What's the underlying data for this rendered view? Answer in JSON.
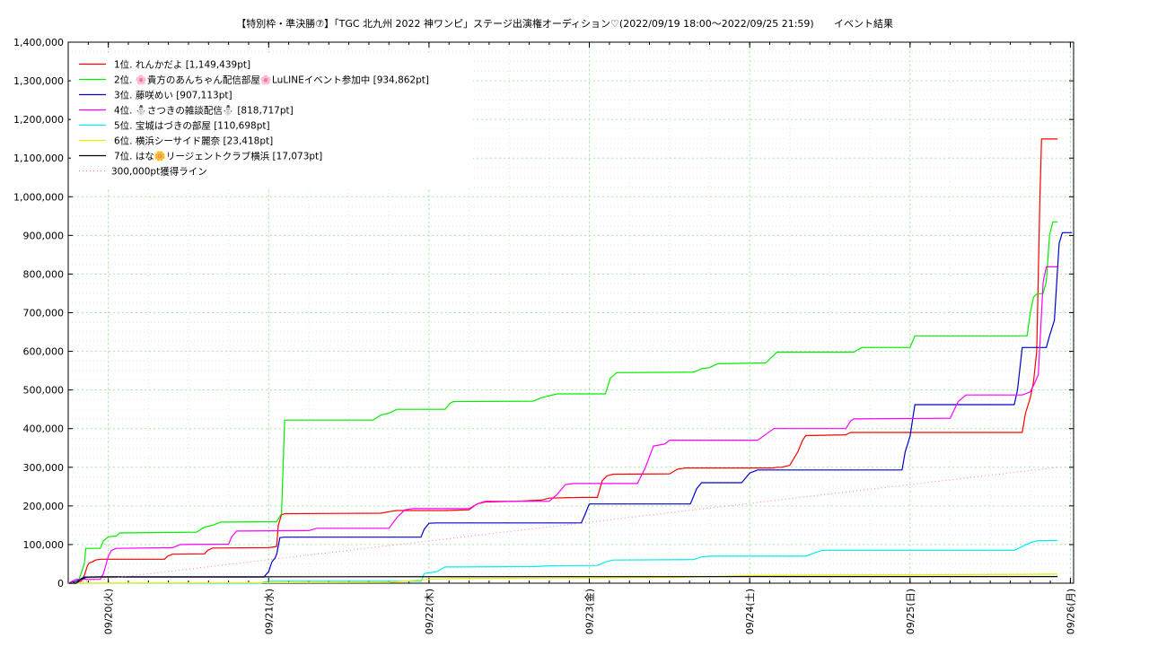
{
  "chart_data": {
    "type": "line",
    "title": "【特別枠・準決勝⑦】「TGC 北九州 2022 神ワンピ」ステージ出演権オーディション♡(2022/09/19 18:00〜2022/09/25 21:59)",
    "subtitle": "イベント結果",
    "xlabel": "",
    "ylabel": "",
    "x_unit": "days since 2022/09/19 18:00",
    "xlim": [
      0,
      6.27
    ],
    "ylim": [
      0,
      1400000
    ],
    "grid": true,
    "legend_position": "top-left",
    "x_ticks": [
      {
        "x": 0.25,
        "label": "09/20(火)"
      },
      {
        "x": 1.25,
        "label": "09/21(水)"
      },
      {
        "x": 2.25,
        "label": "09/22(木)"
      },
      {
        "x": 3.25,
        "label": "09/23(金)"
      },
      {
        "x": 4.25,
        "label": "09/24(土)"
      },
      {
        "x": 5.25,
        "label": "09/25(日)"
      },
      {
        "x": 6.25,
        "label": "09/26(月)"
      }
    ],
    "y_ticks": [
      {
        "v": 0,
        "label": "0"
      },
      {
        "v": 100000,
        "label": "100,000"
      },
      {
        "v": 200000,
        "label": "200,000"
      },
      {
        "v": 300000,
        "label": "300,000"
      },
      {
        "v": 400000,
        "label": "400,000"
      },
      {
        "v": 500000,
        "label": "500,000"
      },
      {
        "v": 600000,
        "label": "600,000"
      },
      {
        "v": 700000,
        "label": "700,000"
      },
      {
        "v": 800000,
        "label": "800,000"
      },
      {
        "v": 900000,
        "label": "900,000"
      },
      {
        "v": 1000000,
        "label": "1,000,000"
      },
      {
        "v": 1100000,
        "label": "1,100,000"
      },
      {
        "v": 1200000,
        "label": "1,200,000"
      },
      {
        "v": 1300000,
        "label": "1,300,000"
      },
      {
        "v": 1400000,
        "label": "1,400,000"
      }
    ],
    "series": [
      {
        "name": "1位. れんかだよ [1,149,439pt]",
        "color": "#ff0000",
        "style": "solid",
        "points": [
          [
            0,
            0
          ],
          [
            0.05,
            0
          ],
          [
            0.08,
            5000
          ],
          [
            0.1,
            20000
          ],
          [
            0.12,
            45000
          ],
          [
            0.13,
            52000
          ],
          [
            0.15,
            55000
          ],
          [
            0.17,
            60000
          ],
          [
            0.2,
            62000
          ],
          [
            0.45,
            62000
          ],
          [
            0.46,
            62000
          ],
          [
            0.6,
            62000
          ],
          [
            0.62,
            70000
          ],
          [
            0.65,
            75000
          ],
          [
            0.85,
            76000
          ],
          [
            0.87,
            85000
          ],
          [
            0.9,
            91000
          ],
          [
            1.25,
            92000
          ],
          [
            1.3,
            95000
          ],
          [
            1.31,
            150000
          ],
          [
            1.33,
            177000
          ],
          [
            1.35,
            180000
          ],
          [
            1.95,
            181000
          ],
          [
            2.0,
            185000
          ],
          [
            2.05,
            188000
          ],
          [
            2.35,
            188000
          ],
          [
            2.5,
            190000
          ],
          [
            2.55,
            205000
          ],
          [
            2.6,
            210000
          ],
          [
            2.8,
            212000
          ],
          [
            2.95,
            215000
          ],
          [
            3.0,
            220000
          ],
          [
            3.2,
            222000
          ],
          [
            3.3,
            222000
          ],
          [
            3.33,
            265000
          ],
          [
            3.36,
            278000
          ],
          [
            3.4,
            282000
          ],
          [
            3.75,
            283000
          ],
          [
            3.8,
            295000
          ],
          [
            3.85,
            298000
          ],
          [
            4.4,
            298000
          ],
          [
            4.42,
            300000
          ],
          [
            4.45,
            300000
          ],
          [
            4.5,
            305000
          ],
          [
            4.55,
            340000
          ],
          [
            4.58,
            370000
          ],
          [
            4.6,
            382000
          ],
          [
            4.85,
            384000
          ],
          [
            4.88,
            390000
          ],
          [
            5.9,
            390000
          ],
          [
            5.95,
            390000
          ],
          [
            5.97,
            440000
          ],
          [
            6.0,
            480000
          ],
          [
            6.02,
            520000
          ],
          [
            6.04,
            600000
          ],
          [
            6.06,
            1000000
          ],
          [
            6.07,
            1149439
          ],
          [
            6.17,
            1149439
          ]
        ]
      },
      {
        "name": "2位. 🌸貴方のあんちゃん配信部屋🌸LuLINEイベント参加中 [934,862pt]",
        "color": "#00ee00",
        "style": "solid",
        "points": [
          [
            0,
            0
          ],
          [
            0.06,
            2000
          ],
          [
            0.08,
            25000
          ],
          [
            0.1,
            50000
          ],
          [
            0.11,
            90000
          ],
          [
            0.2,
            90000
          ],
          [
            0.22,
            110000
          ],
          [
            0.25,
            120000
          ],
          [
            0.3,
            122000
          ],
          [
            0.32,
            130000
          ],
          [
            0.8,
            132000
          ],
          [
            0.85,
            145000
          ],
          [
            0.9,
            150000
          ],
          [
            0.95,
            158000
          ],
          [
            1.3,
            159000
          ],
          [
            1.33,
            180000
          ],
          [
            1.35,
            422000
          ],
          [
            1.9,
            422000
          ],
          [
            1.95,
            435000
          ],
          [
            2.0,
            440000
          ],
          [
            2.05,
            450000
          ],
          [
            2.35,
            450000
          ],
          [
            2.38,
            465000
          ],
          [
            2.4,
            470000
          ],
          [
            2.9,
            471000
          ],
          [
            2.95,
            480000
          ],
          [
            3.0,
            485000
          ],
          [
            3.05,
            490000
          ],
          [
            3.35,
            490000
          ],
          [
            3.38,
            530000
          ],
          [
            3.42,
            545000
          ],
          [
            3.9,
            546000
          ],
          [
            3.95,
            555000
          ],
          [
            4.0,
            558000
          ],
          [
            4.05,
            568000
          ],
          [
            4.35,
            570000
          ],
          [
            4.4,
            590000
          ],
          [
            4.42,
            598000
          ],
          [
            4.9,
            598000
          ],
          [
            4.95,
            610000
          ],
          [
            5.25,
            610000
          ],
          [
            5.28,
            640000
          ],
          [
            5.98,
            640000
          ],
          [
            6.0,
            700000
          ],
          [
            6.01,
            720000
          ],
          [
            6.02,
            740000
          ],
          [
            6.04,
            748000
          ],
          [
            6.08,
            750000
          ],
          [
            6.1,
            780000
          ],
          [
            6.12,
            900000
          ],
          [
            6.14,
            934862
          ],
          [
            6.17,
            934862
          ]
        ]
      },
      {
        "name": "3位. 藤咲めい [907,113pt]",
        "color": "#0000cc",
        "style": "solid",
        "points": [
          [
            0,
            0
          ],
          [
            0.05,
            5000
          ],
          [
            0.1,
            16000
          ],
          [
            1.22,
            16000
          ],
          [
            1.25,
            30000
          ],
          [
            1.27,
            55000
          ],
          [
            1.29,
            65000
          ],
          [
            1.3,
            75000
          ],
          [
            1.32,
            118000
          ],
          [
            1.35,
            119000
          ],
          [
            2.2,
            119000
          ],
          [
            2.22,
            140000
          ],
          [
            2.25,
            155000
          ],
          [
            2.3,
            156000
          ],
          [
            3.2,
            156000
          ],
          [
            3.22,
            175000
          ],
          [
            3.25,
            205000
          ],
          [
            3.3,
            205000
          ],
          [
            3.88,
            205000
          ],
          [
            3.92,
            245000
          ],
          [
            3.95,
            260000
          ],
          [
            4.2,
            260000
          ],
          [
            4.25,
            285000
          ],
          [
            4.3,
            293000
          ],
          [
            5.2,
            293000
          ],
          [
            5.22,
            340000
          ],
          [
            5.25,
            380000
          ],
          [
            5.28,
            462000
          ],
          [
            5.9,
            462000
          ],
          [
            5.92,
            500000
          ],
          [
            5.95,
            610000
          ],
          [
            6.1,
            610000
          ],
          [
            6.12,
            640000
          ],
          [
            6.15,
            680000
          ],
          [
            6.18,
            880000
          ],
          [
            6.2,
            907113
          ],
          [
            6.26,
            907113
          ]
        ]
      },
      {
        "name": "4位. ⛄さつきの雑談配信⛄ [818,717pt]",
        "color": "#ff00ff",
        "style": "solid",
        "points": [
          [
            0,
            0
          ],
          [
            0.05,
            10000
          ],
          [
            0.2,
            10000
          ],
          [
            0.22,
            25000
          ],
          [
            0.25,
            70000
          ],
          [
            0.27,
            85000
          ],
          [
            0.3,
            90000
          ],
          [
            0.65,
            92000
          ],
          [
            0.7,
            100000
          ],
          [
            1.0,
            101000
          ],
          [
            1.02,
            120000
          ],
          [
            1.05,
            135000
          ],
          [
            1.5,
            136000
          ],
          [
            1.55,
            142000
          ],
          [
            2.0,
            142000
          ],
          [
            2.05,
            170000
          ],
          [
            2.1,
            190000
          ],
          [
            2.15,
            193000
          ],
          [
            2.5,
            193000
          ],
          [
            2.55,
            205000
          ],
          [
            2.6,
            212000
          ],
          [
            3.0,
            212000
          ],
          [
            3.05,
            230000
          ],
          [
            3.1,
            255000
          ],
          [
            3.15,
            258000
          ],
          [
            3.55,
            258000
          ],
          [
            3.6,
            300000
          ],
          [
            3.65,
            355000
          ],
          [
            3.72,
            360000
          ],
          [
            3.75,
            370000
          ],
          [
            4.3,
            370000
          ],
          [
            4.35,
            385000
          ],
          [
            4.4,
            400000
          ],
          [
            4.85,
            400000
          ],
          [
            4.88,
            420000
          ],
          [
            4.9,
            425000
          ],
          [
            5.5,
            427000
          ],
          [
            5.55,
            470000
          ],
          [
            5.6,
            487000
          ],
          [
            5.95,
            487000
          ],
          [
            6.0,
            495000
          ],
          [
            6.03,
            520000
          ],
          [
            6.05,
            540000
          ],
          [
            6.08,
            780000
          ],
          [
            6.1,
            818717
          ],
          [
            6.17,
            818717
          ]
        ]
      },
      {
        "name": "5位. 宝城はづきの部屋 [110,698pt]",
        "color": "#00eeee",
        "style": "solid",
        "points": [
          [
            0,
            0
          ],
          [
            1.2,
            0
          ],
          [
            1.22,
            3000
          ],
          [
            1.25,
            5000
          ],
          [
            2.2,
            5000
          ],
          [
            2.22,
            25000
          ],
          [
            2.3,
            30000
          ],
          [
            2.35,
            42000
          ],
          [
            2.9,
            43000
          ],
          [
            3.0,
            45000
          ],
          [
            3.3,
            46000
          ],
          [
            3.35,
            55000
          ],
          [
            3.4,
            60000
          ],
          [
            3.9,
            61000
          ],
          [
            3.95,
            68000
          ],
          [
            4.0,
            70000
          ],
          [
            4.6,
            70000
          ],
          [
            4.65,
            78000
          ],
          [
            4.7,
            85000
          ],
          [
            5.9,
            85000
          ],
          [
            5.95,
            95000
          ],
          [
            6.0,
            105000
          ],
          [
            6.05,
            110000
          ],
          [
            6.17,
            110698
          ]
        ]
      },
      {
        "name": "6位. 横浜シーサイド麗奈 [23,418pt]",
        "color": "#eeee00",
        "style": "solid",
        "points": [
          [
            0,
            0
          ],
          [
            2.0,
            2000
          ],
          [
            2.25,
            10000
          ],
          [
            2.4,
            12000
          ],
          [
            3.2,
            14000
          ],
          [
            3.8,
            15000
          ],
          [
            4.3,
            20000
          ],
          [
            4.6,
            21000
          ],
          [
            5.5,
            22000
          ],
          [
            6.0,
            23000
          ],
          [
            6.17,
            23418
          ]
        ]
      },
      {
        "name": "7位. はな🌼リージェントクラブ横浜 [17,073pt]",
        "color": "#000000",
        "style": "solid",
        "points": [
          [
            0,
            0
          ],
          [
            0.05,
            0
          ],
          [
            0.08,
            10000
          ],
          [
            0.12,
            16000
          ],
          [
            0.2,
            16500
          ],
          [
            3.0,
            17000
          ],
          [
            6.17,
            17073
          ]
        ]
      },
      {
        "name": "300,000pt獲得ライン",
        "color": "#ff77aa",
        "style": "dotted",
        "points": [
          [
            0,
            0
          ],
          [
            6.17,
            300000
          ]
        ]
      }
    ]
  }
}
